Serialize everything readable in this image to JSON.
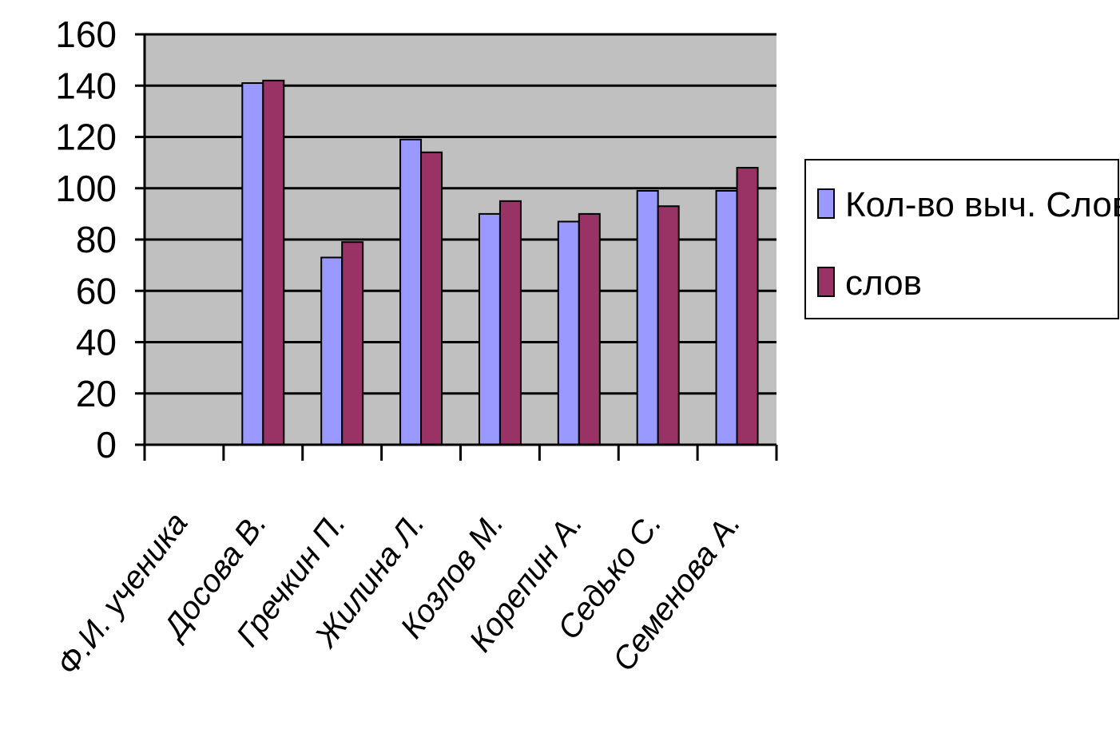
{
  "chart_data": {
    "type": "bar",
    "categories": [
      "Ф.И. ученика",
      "Досова В.",
      "Гречкин П.",
      "Жилина Л.",
      "Козлов М.",
      "Корепин А.",
      "Седько С.",
      "Семенова А."
    ],
    "series": [
      {
        "name": "Кол-во выч. Слов",
        "color": "#9999ff",
        "values": [
          null,
          141,
          73,
          119,
          90,
          87,
          99,
          99
        ]
      },
      {
        "name": "слов",
        "color": "#993366",
        "values": [
          null,
          142,
          79,
          114,
          95,
          90,
          93,
          108
        ]
      }
    ],
    "ylim": [
      0,
      160
    ],
    "yticks": [
      "0",
      "20",
      "40",
      "60",
      "80",
      "100",
      "120",
      "140",
      "160"
    ],
    "grid": true,
    "legend_position": "right",
    "plot_background": "#c0c0c0",
    "title": "",
    "xlabel": "",
    "ylabel": ""
  }
}
